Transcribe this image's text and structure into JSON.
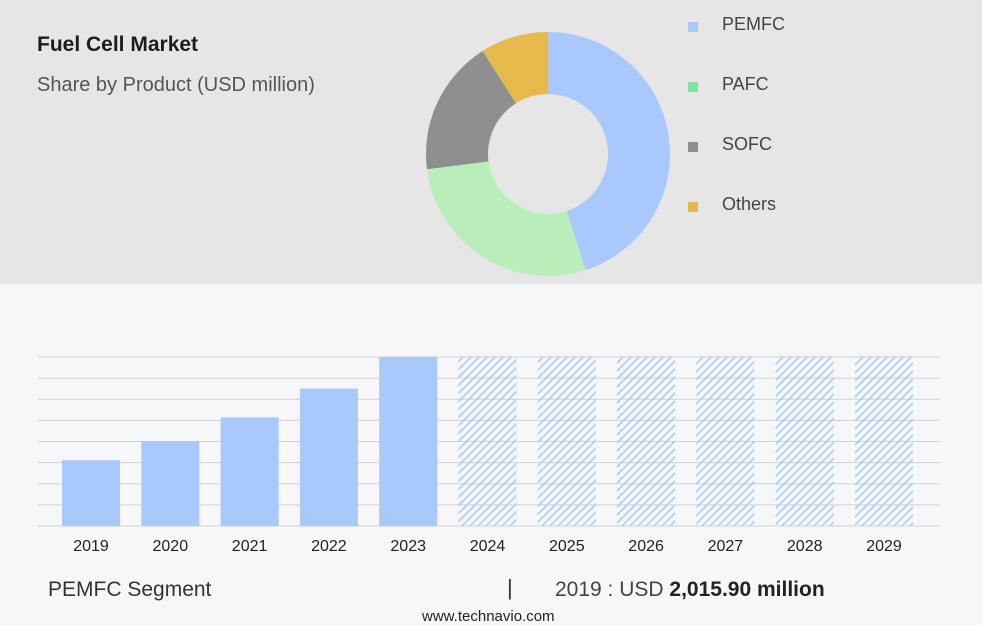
{
  "header": {
    "title": "Fuel Cell Market",
    "subtitle": "Share by Product (USD million)"
  },
  "legend": {
    "items": [
      {
        "label": "PEMFC",
        "color": "#a9c8fb"
      },
      {
        "label": "PAFC",
        "color": "#7fe3a3"
      },
      {
        "label": "SOFC",
        "color": "#8f8f8f"
      },
      {
        "label": "Others",
        "color": "#e5b94b"
      }
    ]
  },
  "footer": {
    "segment_label": "PEMFC Segment",
    "separator": "|",
    "year_text": "2019 : USD",
    "value_text": "2,015.90 million",
    "source": "www.technavio.com"
  },
  "chart_data": [
    {
      "type": "pie",
      "donut": true,
      "categories": [
        "PEMFC",
        "PAFC",
        "SOFC",
        "Others"
      ],
      "values": [
        45,
        28,
        18,
        9
      ],
      "colors": [
        "#a9c8fb",
        "#b8eeba",
        "#8f8f8f",
        "#e5b94b"
      ]
    },
    {
      "type": "bar",
      "categories": [
        "2019",
        "2020",
        "2021",
        "2022",
        "2023",
        "2024",
        "2025",
        "2026",
        "2027",
        "2028",
        "2029"
      ],
      "values": [
        2015.9,
        2600,
        3330,
        4210,
        5180,
        5180,
        5180,
        5180,
        5180,
        5180,
        5180
      ],
      "forecast_from": "2024",
      "bar_color": "#a9c8fb",
      "grid": true
    }
  ]
}
